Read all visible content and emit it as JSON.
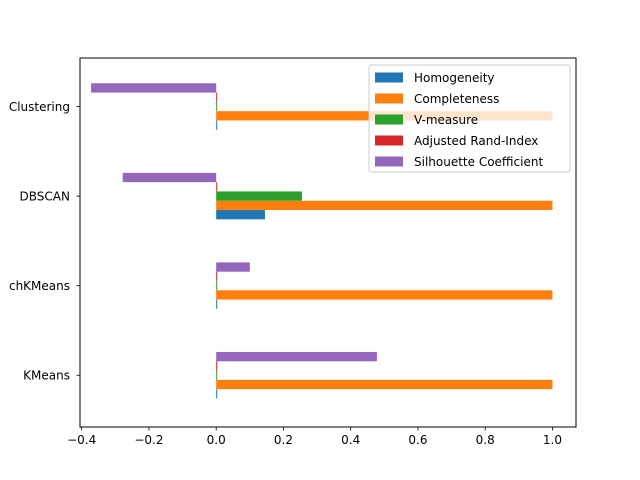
{
  "chart_data": {
    "type": "bar",
    "orientation": "horizontal",
    "categories": [
      "KMeans",
      "MiniBatchKMeans",
      "DBSCAN",
      "Agglomerative Clustering"
    ],
    "category_labels_visible": [
      "KMeans",
      "chKMeans",
      "DBSCAN",
      "Clustering"
    ],
    "series": [
      {
        "name": "Homogeneity",
        "color": "#1f77b4",
        "values": [
          0.0,
          0.0,
          0.145,
          0.0
        ]
      },
      {
        "name": "Completeness",
        "color": "#ff7f0e",
        "values": [
          1.0,
          1.0,
          1.0,
          1.0
        ]
      },
      {
        "name": "V-measure",
        "color": "#2ca02c",
        "values": [
          0.0,
          0.0,
          0.255,
          0.0
        ]
      },
      {
        "name": "Adjusted Rand-Index",
        "color": "#d62728",
        "values": [
          0.0,
          0.0,
          0.0,
          0.0
        ]
      },
      {
        "name": "Silhouette Coefficient",
        "color": "#9467bd",
        "values": [
          0.478,
          0.1,
          -0.278,
          -0.372
        ]
      }
    ],
    "xticks": [
      "−0.4",
      "−0.2",
      "0.0",
      "0.2",
      "0.4",
      "0.6",
      "0.8",
      "1.0"
    ],
    "xtick_values": [
      -0.4,
      -0.2,
      0.0,
      0.2,
      0.4,
      0.6,
      0.8,
      1.0
    ],
    "xlim": [
      -0.405,
      1.07
    ],
    "title": "",
    "xlabel": "",
    "ylabel": "",
    "grid": false,
    "legend_position": "top-right"
  }
}
